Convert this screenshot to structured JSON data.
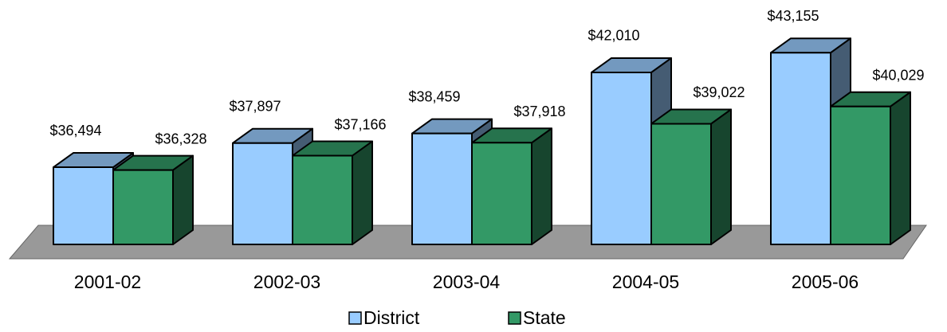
{
  "chart_data": {
    "type": "bar3d",
    "categories": [
      "2001-02",
      "2002-03",
      "2003-04",
      "2004-05",
      "2005-06"
    ],
    "series": [
      {
        "name": "District",
        "color": "#99ccff",
        "values": [
          36494,
          37897,
          38459,
          42010,
          43155
        ],
        "value_labels": [
          "$36,494",
          "$37,897",
          "$38,459",
          "$42,010",
          "$43,155"
        ]
      },
      {
        "name": "State",
        "color": "#339966",
        "values": [
          36328,
          37166,
          37918,
          39022,
          40029
        ],
        "value_labels": [
          "$36,328",
          "$37,166",
          "$37,918",
          "$39,022",
          "$40,029"
        ]
      }
    ],
    "ylim": [
      32000,
      44000
    ],
    "legend": "bottom"
  }
}
